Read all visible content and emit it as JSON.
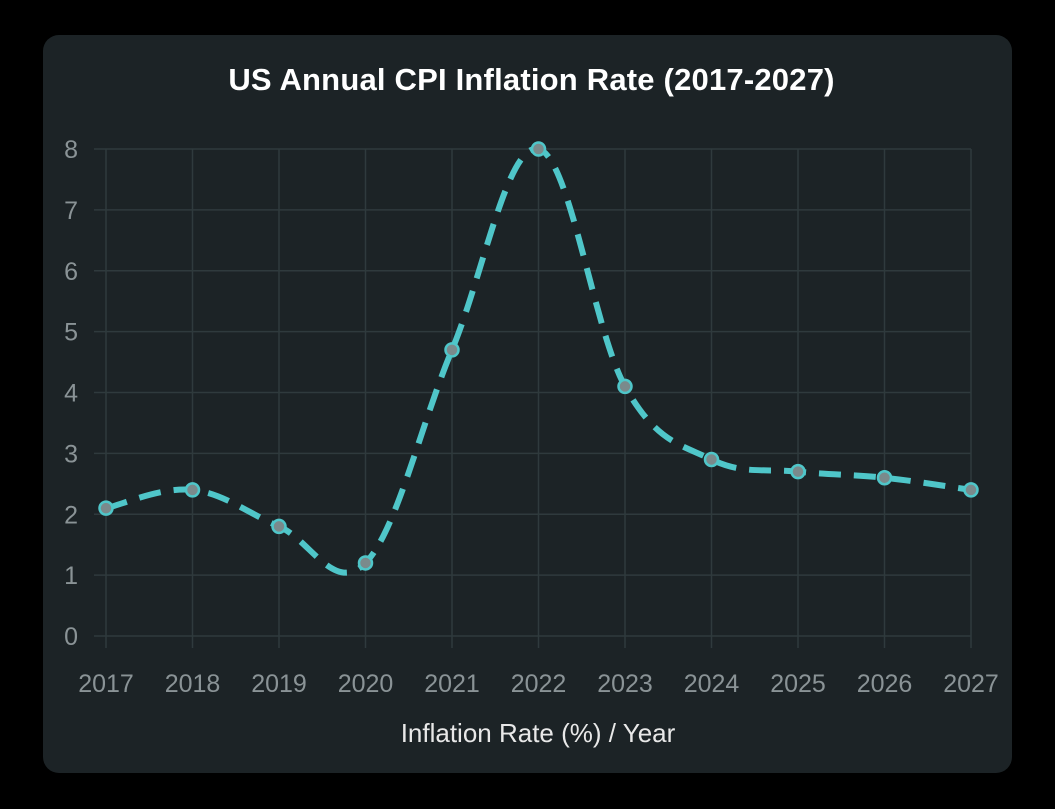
{
  "chart_data": {
    "type": "line",
    "title": "US Annual CPI Inflation Rate (2017-2027)",
    "xlabel": "Inflation Rate (%) / Year",
    "ylabel": "",
    "categories": [
      "2017",
      "2018",
      "2019",
      "2020",
      "2021",
      "2022",
      "2023",
      "2024",
      "2025",
      "2026",
      "2027"
    ],
    "series": [
      {
        "values": [
          2.1,
          2.4,
          1.8,
          1.2,
          4.7,
          8.0,
          4.1,
          2.9,
          2.7,
          2.6,
          2.4
        ]
      }
    ],
    "ylim": [
      0,
      8
    ],
    "yticks": [
      0,
      1,
      2,
      3,
      4,
      5,
      6,
      7,
      8
    ],
    "line_style": "dashed",
    "grid": true,
    "colors": {
      "line": "#4fc6c9",
      "marker_fill": "#7a8a8c",
      "background": "#1c2326",
      "page": "#000000",
      "grid": "#2f3a3d",
      "tick_label": "#8a9396"
    }
  }
}
